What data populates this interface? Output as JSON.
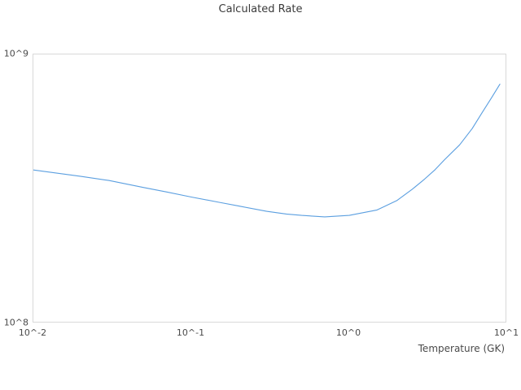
{
  "title": "Calculated Rate",
  "x_axis_title": "Temperature (GK)",
  "colors": {
    "line": "#5b9fe0",
    "plot_border": "#d9d9d9",
    "tick_text": "#4a4a4a",
    "title_text": "#3a3a3a",
    "background": "#ffffff"
  },
  "chart_data": {
    "type": "line",
    "title": "Calculated Rate",
    "xlabel": "Temperature (GK)",
    "ylabel": "",
    "x_scale": "log",
    "y_scale": "log",
    "xlim": [
      0.01,
      10
    ],
    "ylim": [
      100000000.0,
      1000000000.0
    ],
    "grid": false,
    "legend_position": "none",
    "x_ticks": [
      {
        "value": 0.01,
        "label": "10^-2"
      },
      {
        "value": 0.1,
        "label": "10^-1"
      },
      {
        "value": 1,
        "label": "10^0"
      },
      {
        "value": 10,
        "label": "10^1"
      }
    ],
    "y_ticks": [
      {
        "value": 100000000.0,
        "label": "10^8"
      },
      {
        "value": 1000000000.0,
        "label": "10^9"
      }
    ],
    "series": [
      {
        "name": "calculated-rate",
        "x": [
          0.01,
          0.02,
          0.03,
          0.05,
          0.07,
          0.1,
          0.15,
          0.2,
          0.3,
          0.4,
          0.5,
          0.7,
          1.0,
          1.5,
          2.0,
          2.5,
          3.0,
          3.5,
          4.0,
          5.0,
          6.0,
          7.0,
          8.0,
          9.0
        ],
        "y": [
          372000000.0,
          352000000.0,
          340000000.0,
          320000000.0,
          308000000.0,
          295000000.0,
          282000000.0,
          273000000.0,
          261000000.0,
          255000000.0,
          252000000.0,
          249000000.0,
          252000000.0,
          264000000.0,
          286000000.0,
          315000000.0,
          344000000.0,
          373000000.0,
          405000000.0,
          461000000.0,
          530000000.0,
          612000000.0,
          693000000.0,
          775000000.0
        ]
      }
    ]
  }
}
